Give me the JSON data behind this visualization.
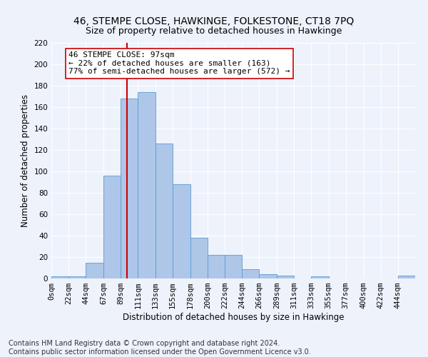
{
  "title": "46, STEMPE CLOSE, HAWKINGE, FOLKESTONE, CT18 7PQ",
  "subtitle": "Size of property relative to detached houses in Hawkinge",
  "xlabel": "Distribution of detached houses by size in Hawkinge",
  "ylabel": "Number of detached properties",
  "bin_labels": [
    "0sqm",
    "22sqm",
    "44sqm",
    "67sqm",
    "89sqm",
    "111sqm",
    "133sqm",
    "155sqm",
    "178sqm",
    "200sqm",
    "222sqm",
    "244sqm",
    "266sqm",
    "289sqm",
    "311sqm",
    "333sqm",
    "355sqm",
    "377sqm",
    "400sqm",
    "422sqm",
    "444sqm"
  ],
  "bin_edges": [
    0,
    22,
    44,
    67,
    89,
    111,
    133,
    155,
    178,
    200,
    222,
    244,
    266,
    289,
    311,
    333,
    355,
    377,
    400,
    422,
    444
  ],
  "bar_heights": [
    2,
    2,
    15,
    96,
    168,
    174,
    126,
    88,
    38,
    22,
    22,
    9,
    4,
    3,
    0,
    2,
    0,
    0,
    0,
    0,
    3
  ],
  "bar_color": "#aec6e8",
  "bar_edge_color": "#5b9bd5",
  "property_size": 97,
  "vline_color": "#cc0000",
  "annotation_text": "46 STEMPE CLOSE: 97sqm\n← 22% of detached houses are smaller (163)\n77% of semi-detached houses are larger (572) →",
  "annotation_box_color": "#ffffff",
  "annotation_box_edge_color": "#cc0000",
  "ylim": [
    0,
    220
  ],
  "yticks": [
    0,
    20,
    40,
    60,
    80,
    100,
    120,
    140,
    160,
    180,
    200,
    220
  ],
  "footer_line1": "Contains HM Land Registry data © Crown copyright and database right 2024.",
  "footer_line2": "Contains public sector information licensed under the Open Government Licence v3.0.",
  "bg_color": "#eef2fb",
  "grid_color": "#ffffff",
  "title_fontsize": 10,
  "subtitle_fontsize": 9,
  "axis_label_fontsize": 8.5,
  "tick_fontsize": 7.5,
  "annotation_fontsize": 8,
  "footer_fontsize": 7
}
